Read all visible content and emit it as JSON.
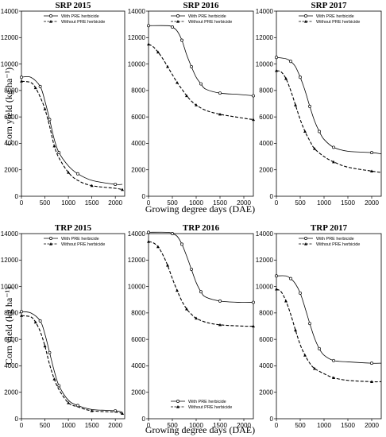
{
  "figure": {
    "xlabel": "Growing degree days (DAE)",
    "ylabel": "Corn yield (kg ha⁻¹)"
  },
  "chart_data": [
    {
      "type": "line",
      "title": "SRP 2015",
      "xlim": [
        0,
        2200
      ],
      "ylim": [
        0,
        14000
      ],
      "xticks": [
        0,
        500,
        1000,
        1500,
        2000
      ],
      "yticks": [
        0,
        2000,
        4000,
        6000,
        8000,
        10000,
        12000,
        14000
      ],
      "legend_position": "top",
      "series": [
        {
          "name": "With PRE herbicide",
          "marker": "circle",
          "dash": "solid",
          "x": [
            0,
            200,
            400,
            500,
            600,
            700,
            800,
            1000,
            1200,
            1500,
            2000,
            2150
          ],
          "y": [
            9000,
            9000,
            8300,
            7200,
            5800,
            4300,
            3300,
            2300,
            1700,
            1200,
            900,
            900
          ]
        },
        {
          "name": "Without PRE herbicide",
          "marker": "triangle",
          "dash": "dashed",
          "x": [
            0,
            200,
            300,
            400,
            500,
            600,
            700,
            800,
            1000,
            1200,
            1500,
            2000,
            2150
          ],
          "y": [
            8700,
            8600,
            8200,
            7500,
            6600,
            5300,
            3800,
            2900,
            1800,
            1200,
            800,
            600,
            500
          ]
        }
      ]
    },
    {
      "type": "line",
      "title": "SRP 2016",
      "xlim": [
        0,
        2200
      ],
      "ylim": [
        0,
        14000
      ],
      "xticks": [
        0,
        500,
        1000,
        1500,
        2000
      ],
      "yticks": [
        0,
        2000,
        4000,
        6000,
        8000,
        10000,
        12000,
        14000
      ],
      "legend_position": "top",
      "series": [
        {
          "name": "With PRE herbicide",
          "marker": "circle",
          "dash": "solid",
          "x": [
            0,
            400,
            500,
            600,
            700,
            800,
            900,
            1000,
            1100,
            1200,
            1500,
            1900,
            2200
          ],
          "y": [
            12900,
            12900,
            12800,
            12500,
            11800,
            10700,
            9800,
            9000,
            8500,
            8100,
            7800,
            7700,
            7600
          ]
        },
        {
          "name": "Without PRE herbicide",
          "marker": "triangle",
          "dash": "dashed",
          "x": [
            0,
            100,
            200,
            300,
            400,
            500,
            600,
            700,
            800,
            900,
            1000,
            1200,
            1500,
            2000,
            2200
          ],
          "y": [
            11500,
            11300,
            10900,
            10400,
            9800,
            9200,
            8600,
            8100,
            7600,
            7200,
            6900,
            6500,
            6200,
            5900,
            5800
          ]
        }
      ]
    },
    {
      "type": "line",
      "title": "SRP 2017",
      "xlim": [
        0,
        2200
      ],
      "ylim": [
        0,
        14000
      ],
      "xticks": [
        0,
        500,
        1000,
        1500,
        2000
      ],
      "yticks": [
        0,
        2000,
        4000,
        6000,
        8000,
        10000,
        12000,
        14000
      ],
      "legend_position": "top",
      "series": [
        {
          "name": "With PRE herbicide",
          "marker": "circle",
          "dash": "solid",
          "x": [
            0,
            200,
            300,
            400,
            500,
            600,
            700,
            800,
            900,
            1000,
            1200,
            1500,
            2000,
            2200
          ],
          "y": [
            10500,
            10400,
            10200,
            9800,
            9000,
            8000,
            6800,
            5700,
            4900,
            4300,
            3700,
            3400,
            3300,
            3200
          ]
        },
        {
          "name": "Without PRE herbicide",
          "marker": "triangle",
          "dash": "dashed",
          "x": [
            0,
            100,
            200,
            300,
            400,
            500,
            600,
            700,
            800,
            1000,
            1200,
            1500,
            2000,
            2200
          ],
          "y": [
            9500,
            9400,
            8900,
            8000,
            6900,
            5800,
            4900,
            4200,
            3600,
            3000,
            2600,
            2200,
            1900,
            1800
          ]
        }
      ]
    },
    {
      "type": "line",
      "title": "TRP 2015",
      "xlim": [
        0,
        2200
      ],
      "ylim": [
        0,
        14000
      ],
      "xticks": [
        0,
        500,
        1000,
        1500,
        2000
      ],
      "yticks": [
        0,
        2000,
        4000,
        6000,
        8000,
        10000,
        12000,
        14000
      ],
      "legend_position": "top",
      "series": [
        {
          "name": "With PRE herbicide",
          "marker": "circle",
          "dash": "solid",
          "x": [
            0,
            200,
            400,
            500,
            600,
            700,
            800,
            1000,
            1200,
            1500,
            2000,
            2150
          ],
          "y": [
            8100,
            8000,
            7400,
            6400,
            5000,
            3600,
            2500,
            1400,
            1000,
            700,
            600,
            500
          ]
        },
        {
          "name": "Without PRE herbicide",
          "marker": "triangle",
          "dash": "dashed",
          "x": [
            0,
            200,
            300,
            400,
            500,
            600,
            700,
            800,
            1000,
            1200,
            1500,
            2000,
            2150
          ],
          "y": [
            7800,
            7700,
            7300,
            6600,
            5500,
            4100,
            3000,
            2200,
            1200,
            900,
            600,
            500,
            400
          ]
        }
      ]
    },
    {
      "type": "line",
      "title": "TRP 2016",
      "xlim": [
        0,
        2200
      ],
      "ylim": [
        0,
        14000
      ],
      "xticks": [
        0,
        500,
        1000,
        1500,
        2000
      ],
      "yticks": [
        0,
        2000,
        4000,
        6000,
        8000,
        10000,
        12000,
        14000
      ],
      "legend_position": "bottom-right",
      "series": [
        {
          "name": "With PRE herbicide",
          "marker": "circle",
          "dash": "solid",
          "x": [
            0,
            400,
            500,
            600,
            700,
            800,
            900,
            1000,
            1100,
            1200,
            1500,
            1900,
            2200
          ],
          "y": [
            14100,
            14100,
            14000,
            13800,
            13200,
            12300,
            11300,
            10300,
            9600,
            9200,
            8900,
            8800,
            8800
          ]
        },
        {
          "name": "Without PRE herbicide",
          "marker": "triangle",
          "dash": "dashed",
          "x": [
            0,
            100,
            200,
            300,
            400,
            500,
            600,
            700,
            800,
            900,
            1000,
            1200,
            1500,
            2000,
            2200
          ],
          "y": [
            13400,
            13300,
            13000,
            12400,
            11600,
            10600,
            9700,
            8900,
            8300,
            7900,
            7600,
            7300,
            7100,
            7000,
            7000
          ]
        }
      ]
    },
    {
      "type": "line",
      "title": "TRP 2017",
      "xlim": [
        0,
        2200
      ],
      "ylim": [
        0,
        14000
      ],
      "xticks": [
        0,
        500,
        1000,
        1500,
        2000
      ],
      "yticks": [
        0,
        2000,
        4000,
        6000,
        8000,
        10000,
        12000,
        14000
      ],
      "legend_position": "top",
      "series": [
        {
          "name": "With PRE herbicide",
          "marker": "circle",
          "dash": "solid",
          "x": [
            0,
            200,
            300,
            400,
            500,
            600,
            700,
            800,
            900,
            1000,
            1200,
            1500,
            2000,
            2200
          ],
          "y": [
            10800,
            10800,
            10600,
            10200,
            9500,
            8400,
            7200,
            6100,
            5300,
            4800,
            4400,
            4300,
            4200,
            4200
          ]
        },
        {
          "name": "Without PRE herbicide",
          "marker": "triangle",
          "dash": "dashed",
          "x": [
            0,
            100,
            200,
            300,
            400,
            500,
            600,
            700,
            800,
            1000,
            1200,
            1500,
            2000,
            2200
          ],
          "y": [
            9800,
            9600,
            8900,
            7900,
            6700,
            5600,
            4800,
            4200,
            3800,
            3400,
            3100,
            2900,
            2800,
            2800
          ]
        }
      ]
    }
  ]
}
